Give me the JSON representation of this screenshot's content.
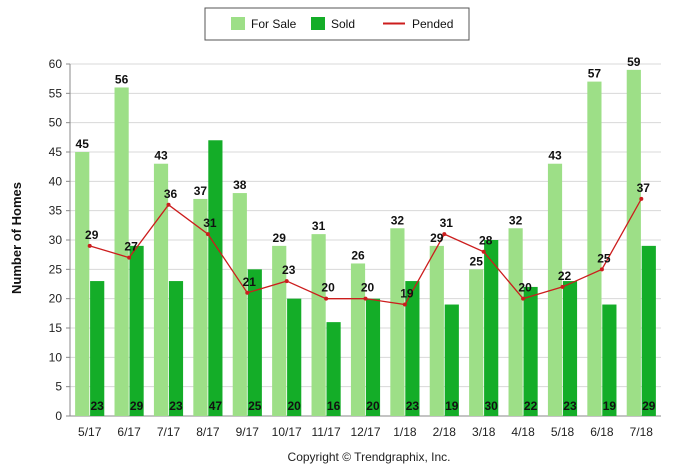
{
  "chart_data": {
    "type": "bar",
    "categories": [
      "5/17",
      "6/17",
      "7/17",
      "8/17",
      "9/17",
      "10/17",
      "11/17",
      "12/17",
      "1/18",
      "2/18",
      "3/18",
      "4/18",
      "5/18",
      "6/18",
      "7/18"
    ],
    "series": [
      {
        "name": "For Sale",
        "kind": "bar",
        "color": "#9ddf87",
        "values": [
          45,
          56,
          43,
          37,
          38,
          29,
          31,
          26,
          32,
          29,
          25,
          32,
          43,
          57,
          59
        ]
      },
      {
        "name": "Sold",
        "kind": "bar",
        "color": "#14ad28",
        "values": [
          23,
          29,
          23,
          47,
          25,
          20,
          16,
          20,
          23,
          19,
          30,
          22,
          23,
          19,
          29
        ]
      },
      {
        "name": "Pended",
        "kind": "line",
        "color": "#cc1d1d",
        "values": [
          29,
          27,
          36,
          31,
          21,
          23,
          20,
          20,
          19,
          31,
          28,
          20,
          22,
          25,
          37
        ]
      }
    ],
    "ylabel": "Number of Homes",
    "xlabel": "",
    "ylim": [
      0,
      60
    ],
    "yticks": [
      "0",
      "5",
      "10",
      "15",
      "20",
      "25",
      "30",
      "35",
      "40",
      "45",
      "50",
      "55",
      "60"
    ],
    "grid": true,
    "legend": "top-center"
  },
  "footer": "Copyright © Trendgraphix, Inc."
}
